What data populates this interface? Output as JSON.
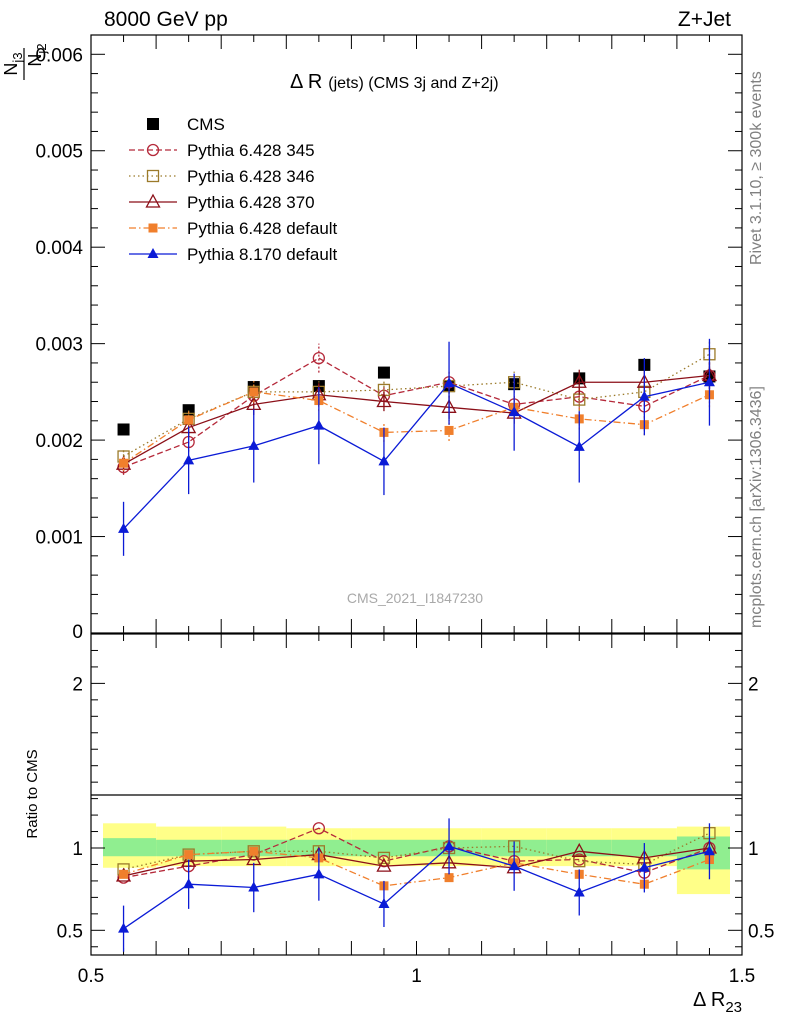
{
  "header": {
    "left": "8000 GeV pp",
    "right": "Z+Jet"
  },
  "side_labels": {
    "rivet": "Rivet 3.1.10, ≥ 300k events",
    "source": "mcplots.cern.ch [arXiv:1306.3436]"
  },
  "watermark": "CMS_2021_I1847230",
  "colors": {
    "cms": "#000000",
    "p345": "#b5293a",
    "p346": "#9b7a2a",
    "p370": "#8b0f18",
    "p6def": "#f07f2c",
    "p8def": "#0b1bd6",
    "band_inner": "#90ee90",
    "band_outer": "#ffff88"
  },
  "chart_data": [
    {
      "type": "scatter",
      "panel": "main",
      "title": "Δ R",
      "title_paren": "(jets) (CMS 3j and Z+2j)",
      "ylabel_num": "N",
      "ylabel_num_sub": "j3",
      "ylabel_den": "N",
      "ylabel_den_sub": "j2",
      "xlim": [
        0.5,
        1.5
      ],
      "ylim": [
        0,
        0.0062
      ],
      "yticks": [
        {
          "v": 0.001,
          "label": "0.001"
        },
        {
          "v": 0.002,
          "label": "0.002"
        },
        {
          "v": 0.003,
          "label": "0.003"
        },
        {
          "v": 0.004,
          "label": "0.004"
        },
        {
          "v": 0.005,
          "label": "0.005"
        },
        {
          "v": 0.006,
          "label": "0.006"
        }
      ],
      "y_zero_label": "0",
      "legend_position": "top-left",
      "x": [
        0.55,
        0.65,
        0.75,
        0.85,
        0.95,
        1.05,
        1.15,
        1.25,
        1.35,
        1.45
      ],
      "series": [
        {
          "key": "cms",
          "name": "CMS",
          "marker": "square",
          "line": "none",
          "values": [
            0.00211,
            0.00231,
            0.00255,
            0.00256,
            0.0027,
            0.00256,
            0.00258,
            0.00264,
            0.00278,
            0.00266
          ]
        },
        {
          "key": "p345",
          "name": "Pythia 6.428 345",
          "marker": "circle-open",
          "line": "dashed",
          "values": [
            0.00172,
            0.00198,
            0.00246,
            0.00285,
            0.00246,
            0.0026,
            0.00237,
            0.00245,
            0.00235,
            0.00267
          ],
          "errors": [
            8e-05,
            0.0001,
            0.00011,
            0.00015,
            0.0001,
            0.00012,
            0.0001,
            0.00013,
            0.00012,
            0.00014
          ]
        },
        {
          "key": "p346",
          "name": "Pythia 6.428 346",
          "marker": "square-open",
          "line": "dotted",
          "values": [
            0.00183,
            0.00222,
            0.0025,
            0.0025,
            0.00252,
            0.00256,
            0.0026,
            0.00242,
            0.0025,
            0.00289
          ],
          "errors": [
            8e-05,
            0.0001,
            0.00011,
            0.00011,
            0.0001,
            0.00012,
            0.00011,
            0.00012,
            0.00012,
            0.00014
          ]
        },
        {
          "key": "p370",
          "name": "Pythia 6.428 370",
          "marker": "triangle-open",
          "line": "solid",
          "values": [
            0.00175,
            0.00213,
            0.00237,
            0.00247,
            0.0024,
            0.00234,
            0.00228,
            0.0026,
            0.0026,
            0.00267
          ],
          "errors": [
            8e-05,
            0.0001,
            0.00011,
            0.00012,
            0.0001,
            0.00012,
            0.00011,
            0.00013,
            0.00012,
            0.00014
          ]
        },
        {
          "key": "p6def",
          "name": "Pythia 6.428 default",
          "marker": "square-small",
          "line": "dashdot",
          "values": [
            0.00176,
            0.00221,
            0.0025,
            0.00241,
            0.00208,
            0.0021,
            0.00234,
            0.00222,
            0.00216,
            0.00247
          ],
          "errors": [
            8e-05,
            0.0001,
            0.00011,
            0.00011,
            0.0001,
            0.00011,
            0.00011,
            0.00011,
            0.00011,
            0.00013
          ]
        },
        {
          "key": "p8def",
          "name": "Pythia 8.170 default",
          "marker": "triangle",
          "line": "solid",
          "values": [
            0.00108,
            0.00179,
            0.00194,
            0.00215,
            0.00178,
            0.00259,
            0.00229,
            0.00193,
            0.00245,
            0.0026
          ],
          "errors": [
            0.00028,
            0.00035,
            0.00038,
            0.0004,
            0.00035,
            0.00043,
            0.0004,
            0.00037,
            0.0004,
            0.00045
          ]
        }
      ]
    },
    {
      "type": "scatter",
      "panel": "ratio",
      "ylabel": "Ratio to CMS",
      "xlabel_main": "Δ R",
      "xlabel_sub": "23",
      "xlim": [
        0.5,
        1.5
      ],
      "ylim": [
        0.35,
        2.3
      ],
      "yticks": [
        {
          "v": 0.5,
          "label": "0.5"
        },
        {
          "v": 1,
          "label": "1"
        },
        {
          "v": 2,
          "label": "2"
        }
      ],
      "xticks": [
        {
          "v": 0.5,
          "label": "0.5"
        },
        {
          "v": 1,
          "label": "1"
        },
        {
          "v": 1.5,
          "label": "1.5"
        }
      ],
      "bins": [
        [
          0.5,
          0.6
        ],
        [
          0.6,
          0.7
        ],
        [
          0.7,
          0.8
        ],
        [
          0.8,
          0.9
        ],
        [
          0.9,
          1.0
        ],
        [
          1.0,
          1.1
        ],
        [
          1.1,
          1.2
        ],
        [
          1.2,
          1.3
        ],
        [
          1.3,
          1.4
        ],
        [
          1.4,
          1.5
        ]
      ],
      "band_inner": [
        [
          0.95,
          1.06
        ],
        [
          0.95,
          1.05
        ],
        [
          0.95,
          1.05
        ],
        [
          0.95,
          1.05
        ],
        [
          0.95,
          1.05
        ],
        [
          0.95,
          1.05
        ],
        [
          0.95,
          1.05
        ],
        [
          0.95,
          1.05
        ],
        [
          0.95,
          1.05
        ],
        [
          0.87,
          1.07
        ]
      ],
      "band_outer": [
        [
          0.88,
          1.15
        ],
        [
          0.89,
          1.13
        ],
        [
          0.89,
          1.13
        ],
        [
          0.89,
          1.12
        ],
        [
          0.89,
          1.12
        ],
        [
          0.89,
          1.12
        ],
        [
          0.89,
          1.12
        ],
        [
          0.89,
          1.12
        ],
        [
          0.89,
          1.12
        ],
        [
          0.72,
          1.13
        ]
      ],
      "series": [
        {
          "key": "p345",
          "values": [
            0.82,
            0.89,
            0.96,
            1.12,
            0.92,
            1.01,
            0.92,
            0.93,
            0.85,
            1.0
          ]
        },
        {
          "key": "p346",
          "values": [
            0.87,
            0.96,
            0.98,
            0.98,
            0.94,
            1.0,
            1.01,
            0.92,
            0.9,
            1.09
          ]
        },
        {
          "key": "p370",
          "values": [
            0.83,
            0.92,
            0.93,
            0.96,
            0.89,
            0.91,
            0.88,
            0.98,
            0.94,
            1.0
          ]
        },
        {
          "key": "p6def",
          "values": [
            0.84,
            0.96,
            0.98,
            0.94,
            0.77,
            0.82,
            0.91,
            0.84,
            0.78,
            0.93
          ]
        },
        {
          "key": "p8def",
          "values": [
            0.51,
            0.78,
            0.76,
            0.84,
            0.66,
            1.01,
            0.89,
            0.73,
            0.88,
            0.98
          ],
          "errors": [
            0.14,
            0.15,
            0.15,
            0.16,
            0.14,
            0.17,
            0.15,
            0.14,
            0.15,
            0.17
          ]
        }
      ]
    }
  ]
}
